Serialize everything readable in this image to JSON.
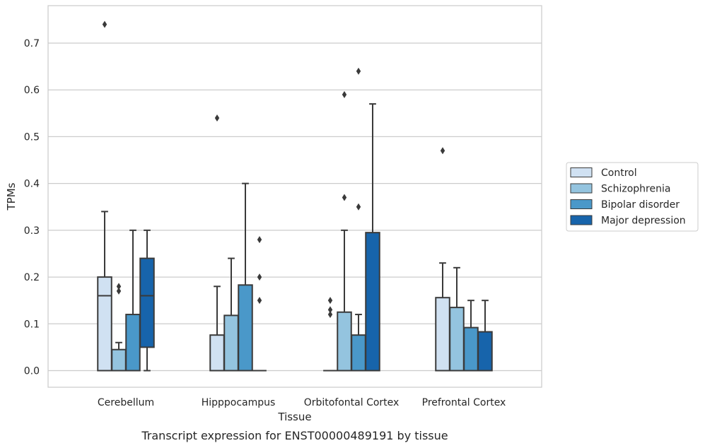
{
  "caption": "Transcript expression for ENST00000489191 by tissue",
  "chart_data": {
    "type": "box",
    "xlabel": "Tissue",
    "ylabel": "TPMs",
    "ylim": [
      -0.035,
      0.775
    ],
    "yticks": [
      "0.0",
      "0.1",
      "0.2",
      "0.3",
      "0.4",
      "0.5",
      "0.6",
      "0.7"
    ],
    "ytick_values": [
      0,
      0.1,
      0.2,
      0.3,
      0.4,
      0.5,
      0.6,
      0.7
    ],
    "grid": "horizontal",
    "legend_placement": "right",
    "categories": [
      "Cerebellum",
      "Hipppocampus",
      "Orbitofontal Cortex",
      "Prefrontal Cortex"
    ],
    "series": [
      {
        "name": "Control",
        "color": "#d0e1f2",
        "boxes": [
          {
            "q1": 0,
            "median": 0.16,
            "q3": 0.2,
            "whislo": 0,
            "whishi": 0.34,
            "fliers": [
              0.74
            ]
          },
          {
            "q1": 0,
            "median": 0,
            "q3": 0.076,
            "whislo": 0,
            "whishi": 0.18,
            "fliers": [
              0.54
            ]
          },
          {
            "q1": 0,
            "median": 0,
            "q3": 0,
            "whislo": 0,
            "whishi": 0,
            "fliers": [
              0.12,
              0.13,
              0.15
            ]
          },
          {
            "q1": 0,
            "median": 0,
            "q3": 0.156,
            "whislo": 0,
            "whishi": 0.23,
            "fliers": [
              0.47
            ]
          }
        ]
      },
      {
        "name": "Schizophrenia",
        "color": "#94c4df",
        "boxes": [
          {
            "q1": 0,
            "median": 0,
            "q3": 0.045,
            "whislo": 0,
            "whishi": 0.06,
            "fliers": [
              0.17,
              0.18
            ]
          },
          {
            "q1": 0,
            "median": 0,
            "q3": 0.118,
            "whislo": 0,
            "whishi": 0.24,
            "fliers": []
          },
          {
            "q1": 0,
            "median": 0,
            "q3": 0.125,
            "whislo": 0,
            "whishi": 0.3,
            "fliers": [
              0.37,
              0.59
            ]
          },
          {
            "q1": 0,
            "median": 0,
            "q3": 0.135,
            "whislo": 0,
            "whishi": 0.22,
            "fliers": []
          }
        ]
      },
      {
        "name": "Bipolar disorder",
        "color": "#4a98c9",
        "boxes": [
          {
            "q1": 0,
            "median": 0,
            "q3": 0.12,
            "whislo": 0,
            "whishi": 0.3,
            "fliers": []
          },
          {
            "q1": 0,
            "median": 0,
            "q3": 0.183,
            "whislo": 0,
            "whishi": 0.4,
            "fliers": []
          },
          {
            "q1": 0,
            "median": 0,
            "q3": 0.076,
            "whislo": 0,
            "whishi": 0.12,
            "fliers": [
              0.35,
              0.64
            ]
          },
          {
            "q1": 0,
            "median": 0,
            "q3": 0.092,
            "whislo": 0,
            "whishi": 0.15,
            "fliers": []
          }
        ]
      },
      {
        "name": "Major depression",
        "color": "#1764ab",
        "boxes": [
          {
            "q1": 0.05,
            "median": 0.16,
            "q3": 0.24,
            "whislo": 0,
            "whishi": 0.3,
            "fliers": []
          },
          {
            "q1": 0,
            "median": 0,
            "q3": 0,
            "whislo": 0,
            "whishi": 0,
            "fliers": [
              0.15,
              0.2,
              0.28
            ]
          },
          {
            "q1": 0,
            "median": 0,
            "q3": 0.295,
            "whislo": 0,
            "whishi": 0.57,
            "fliers": []
          },
          {
            "q1": 0,
            "median": 0,
            "q3": 0.083,
            "whislo": 0,
            "whishi": 0.15,
            "fliers": []
          }
        ]
      }
    ]
  }
}
